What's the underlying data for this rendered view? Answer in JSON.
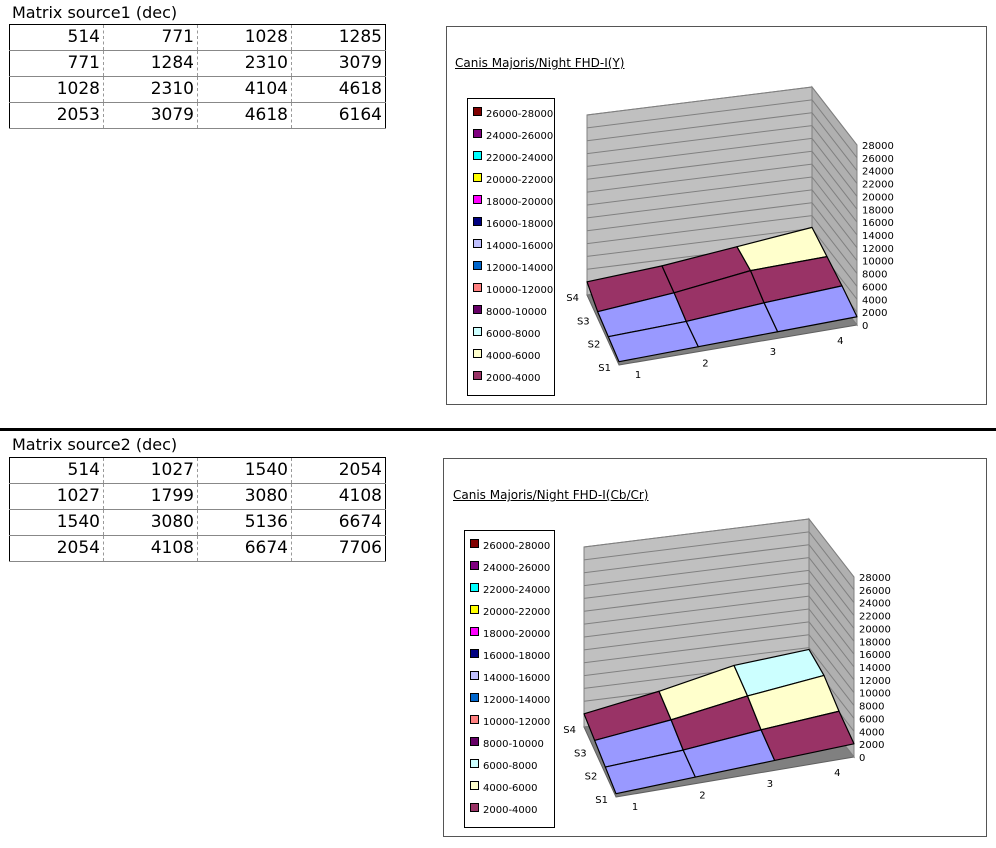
{
  "section1": {
    "title": "Matrix source1 (dec)",
    "rows": [
      [
        "514",
        "771",
        "1028",
        "1285"
      ],
      [
        "771",
        "1284",
        "2310",
        "3079"
      ],
      [
        "1028",
        "2310",
        "4104",
        "4618"
      ],
      [
        "2053",
        "3079",
        "4618",
        "6164"
      ]
    ]
  },
  "section2": {
    "title": "Matrix source2 (dec)",
    "rows": [
      [
        "514",
        "1027",
        "1540",
        "2054"
      ],
      [
        "1027",
        "1799",
        "3080",
        "4108"
      ],
      [
        "1540",
        "3080",
        "5136",
        "6674"
      ],
      [
        "2054",
        "4108",
        "6674",
        "7706"
      ]
    ]
  },
  "legend": [
    {
      "label": "26000-28000",
      "color": "#800000"
    },
    {
      "label": "24000-26000",
      "color": "#800080"
    },
    {
      "label": "22000-24000",
      "color": "#00ffff"
    },
    {
      "label": "20000-22000",
      "color": "#ffff00"
    },
    {
      "label": "18000-20000",
      "color": "#ff00ff"
    },
    {
      "label": "16000-18000",
      "color": "#000080"
    },
    {
      "label": "14000-16000",
      "color": "#c0c0ff"
    },
    {
      "label": "12000-14000",
      "color": "#0066cc"
    },
    {
      "label": "10000-12000",
      "color": "#ff8080"
    },
    {
      "label": "8000-10000",
      "color": "#660066"
    },
    {
      "label": "6000-8000",
      "color": "#ccffff"
    },
    {
      "label": "4000-6000",
      "color": "#ffffcc"
    },
    {
      "label": "2000-4000",
      "color": "#993366"
    }
  ],
  "chart_data": [
    {
      "type": "surface",
      "title": "Canis Majoris/Night FHD-I(Y)",
      "x_categories": [
        "1",
        "2",
        "3",
        "4"
      ],
      "series_names": [
        "S1",
        "S2",
        "S3",
        "S4"
      ],
      "z_ticks": [
        "0",
        "2000",
        "4000",
        "6000",
        "8000",
        "10000",
        "12000",
        "14000",
        "16000",
        "18000",
        "20000",
        "22000",
        "24000",
        "26000",
        "28000"
      ],
      "zlim": [
        0,
        28000
      ],
      "values": [
        [
          514,
          771,
          1028,
          1285
        ],
        [
          771,
          1284,
          2310,
          3079
        ],
        [
          1028,
          2310,
          4104,
          4618
        ],
        [
          2053,
          3079,
          4618,
          6164
        ]
      ]
    },
    {
      "type": "surface",
      "title": "Canis Majoris/Night FHD-I(Cb/Cr)",
      "x_categories": [
        "1",
        "2",
        "3",
        "4"
      ],
      "series_names": [
        "S1",
        "S2",
        "S3",
        "S4"
      ],
      "z_ticks": [
        "0",
        "2000",
        "4000",
        "6000",
        "8000",
        "10000",
        "12000",
        "14000",
        "16000",
        "18000",
        "20000",
        "22000",
        "24000",
        "26000",
        "28000"
      ],
      "zlim": [
        0,
        28000
      ],
      "values": [
        [
          514,
          1027,
          1540,
          2054
        ],
        [
          1027,
          1799,
          3080,
          4108
        ],
        [
          1540,
          3080,
          5136,
          6674
        ],
        [
          2054,
          4108,
          6674,
          7706
        ]
      ]
    }
  ],
  "surface_colors": {
    "band_0_2000": "#9999ff",
    "band_2000_4000": "#993366",
    "band_4000_6000": "#ffffcc",
    "band_6000_8000": "#ccffff",
    "wall": "#c0c0c0",
    "floor": "#808080"
  }
}
